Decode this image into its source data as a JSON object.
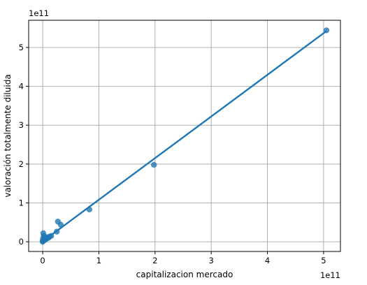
{
  "chart_data": {
    "type": "scatter",
    "xlabel": "capitalizacion mercado",
    "ylabel": "valoración totalmente diluida",
    "x_offset_label": "1e11",
    "y_offset_label": "1e11",
    "xlim": [
      -0.25,
      5.3
    ],
    "ylim": [
      -0.25,
      5.7
    ],
    "x_ticks": [
      0,
      1,
      2,
      3,
      4,
      5
    ],
    "y_ticks": [
      0,
      1,
      2,
      3,
      4,
      5
    ],
    "grid": true,
    "colors": {
      "points": "#1f77b4",
      "line": "#1f77b4",
      "grid": "#b0b0b0"
    },
    "series": [
      {
        "points": [
          {
            "x": 0.0,
            "y": 0.0
          },
          {
            "x": 0.0,
            "y": 0.02
          },
          {
            "x": 0.005,
            "y": 0.08
          },
          {
            "x": 0.01,
            "y": 0.22
          },
          {
            "x": 0.02,
            "y": 0.05
          },
          {
            "x": 0.02,
            "y": 0.15
          },
          {
            "x": 0.03,
            "y": 0.04
          },
          {
            "x": 0.05,
            "y": 0.06
          },
          {
            "x": 0.06,
            "y": 0.12
          },
          {
            "x": 0.08,
            "y": 0.09
          },
          {
            "x": 0.1,
            "y": 0.1
          },
          {
            "x": 0.12,
            "y": 0.13
          },
          {
            "x": 0.15,
            "y": 0.15
          },
          {
            "x": 0.25,
            "y": 0.26
          },
          {
            "x": 0.27,
            "y": 0.52
          },
          {
            "x": 0.32,
            "y": 0.44
          },
          {
            "x": 0.83,
            "y": 0.83
          },
          {
            "x": 1.98,
            "y": 1.98
          },
          {
            "x": 5.05,
            "y": 5.44
          }
        ]
      }
    ],
    "regression": {
      "x": [
        0.0,
        5.05
      ],
      "y": [
        0.01,
        5.42
      ]
    }
  }
}
